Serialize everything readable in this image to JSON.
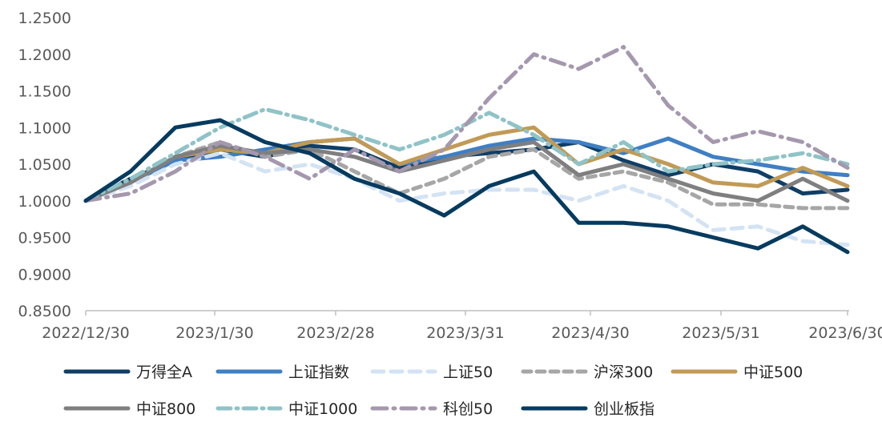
{
  "chart_data": {
    "type": "line",
    "title": "",
    "xlabel": "",
    "ylabel": "",
    "ylim": [
      0.85,
      1.25
    ],
    "yticks": [
      "0.8500",
      "0.9000",
      "0.9500",
      "1.0000",
      "1.0500",
      "1.1000",
      "1.1500",
      "1.2000",
      "1.2500"
    ],
    "xticks": [
      "2022/12/30",
      "2023/1/30",
      "2023/2/28",
      "2023/3/31",
      "2023/4/30",
      "2023/5/31",
      "2023/6/30"
    ],
    "grid": false,
    "legend_position": "bottom",
    "series": [
      {
        "name": "万得全A",
        "color": "#0f3e66",
        "dash": "solid",
        "values": [
          1.0,
          1.03,
          1.055,
          1.07,
          1.06,
          1.075,
          1.07,
          1.045,
          1.06,
          1.065,
          1.07,
          1.08,
          1.055,
          1.035,
          1.05,
          1.04,
          1.01,
          1.015
        ]
      },
      {
        "name": "上证指数",
        "color": "#3f7fc4",
        "dash": "solid",
        "values": [
          1.0,
          1.025,
          1.055,
          1.06,
          1.07,
          1.08,
          1.085,
          1.05,
          1.06,
          1.075,
          1.085,
          1.08,
          1.065,
          1.085,
          1.06,
          1.05,
          1.04,
          1.035
        ]
      },
      {
        "name": "上证50",
        "color": "#d3e3f3",
        "dash": "longdash",
        "values": [
          1.0,
          1.02,
          1.05,
          1.065,
          1.04,
          1.05,
          1.03,
          1.0,
          1.01,
          1.015,
          1.015,
          1.0,
          1.02,
          1.0,
          0.96,
          0.965,
          0.945,
          0.94
        ]
      },
      {
        "name": "沪深300",
        "color": "#a6a6a6",
        "dash": "dash",
        "values": [
          1.0,
          1.025,
          1.06,
          1.08,
          1.06,
          1.07,
          1.04,
          1.01,
          1.03,
          1.06,
          1.07,
          1.03,
          1.04,
          1.025,
          0.995,
          0.995,
          0.99,
          0.99
        ]
      },
      {
        "name": "中证500",
        "color": "#c19a56",
        "dash": "solid",
        "values": [
          1.0,
          1.025,
          1.06,
          1.07,
          1.065,
          1.08,
          1.085,
          1.05,
          1.07,
          1.09,
          1.1,
          1.05,
          1.07,
          1.05,
          1.025,
          1.02,
          1.045,
          1.02
        ]
      },
      {
        "name": "中证800",
        "color": "#7f7f7f",
        "dash": "solid",
        "values": [
          1.0,
          1.025,
          1.06,
          1.075,
          1.065,
          1.07,
          1.06,
          1.04,
          1.055,
          1.07,
          1.08,
          1.035,
          1.05,
          1.03,
          1.01,
          1.0,
          1.03,
          1.0
        ]
      },
      {
        "name": "中证1000",
        "color": "#8fc3c7",
        "dash": "dashdot",
        "values": [
          1.0,
          1.03,
          1.065,
          1.1,
          1.125,
          1.11,
          1.09,
          1.07,
          1.09,
          1.12,
          1.09,
          1.05,
          1.08,
          1.04,
          1.05,
          1.055,
          1.065,
          1.05
        ]
      },
      {
        "name": "科创50",
        "color": "#a598ae",
        "dash": "dashdot2",
        "values": [
          1.0,
          1.01,
          1.04,
          1.08,
          1.06,
          1.03,
          1.07,
          1.04,
          1.07,
          1.14,
          1.2,
          1.18,
          1.21,
          1.13,
          1.08,
          1.095,
          1.08,
          1.045
        ]
      },
      {
        "name": "创业板指",
        "color": "#063b5f",
        "dash": "solid",
        "values": [
          1.0,
          1.04,
          1.1,
          1.11,
          1.08,
          1.065,
          1.03,
          1.01,
          0.98,
          1.02,
          1.04,
          0.97,
          0.97,
          0.965,
          0.95,
          0.935,
          0.965,
          0.93
        ]
      }
    ]
  }
}
